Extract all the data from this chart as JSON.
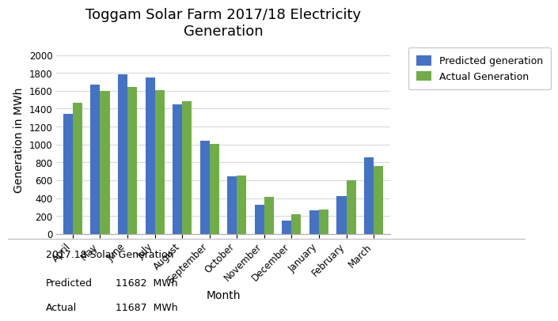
{
  "title": "Toggam Solar Farm 2017/18 Electricity\nGeneration",
  "xlabel": "Month",
  "ylabel": "Generation in MWh",
  "months": [
    "April",
    "May",
    "June",
    "July",
    "August",
    "September",
    "October",
    "November",
    "December",
    "January",
    "February",
    "March"
  ],
  "predicted": [
    1340,
    1670,
    1780,
    1750,
    1450,
    1040,
    640,
    330,
    150,
    260,
    425,
    860
  ],
  "actual": [
    1470,
    1600,
    1640,
    1610,
    1480,
    1010,
    650,
    410,
    220,
    270,
    600,
    760
  ],
  "predicted_color": "#4472C4",
  "actual_color": "#70AD47",
  "legend_predicted": "Predicted generation",
  "legend_actual": "Actual Generation",
  "ylim": [
    0,
    2100
  ],
  "yticks": [
    0,
    200,
    400,
    600,
    800,
    1000,
    1200,
    1400,
    1600,
    1800,
    2000
  ],
  "background_color": "#FFFFFF",
  "plot_bg_color": "#FFFFFF",
  "grid_color": "#D9D9D9",
  "bar_width": 0.35,
  "summary_title": "2017.18 Solar Generation",
  "summary_predicted_label": "Predicted",
  "summary_predicted_value": "11682  MWh",
  "summary_actual_label": "Actual",
  "summary_actual_value": "11687  MWh",
  "title_fontsize": 13,
  "axis_label_fontsize": 10,
  "tick_fontsize": 8.5,
  "legend_fontsize": 9,
  "summary_fontsize": 9
}
